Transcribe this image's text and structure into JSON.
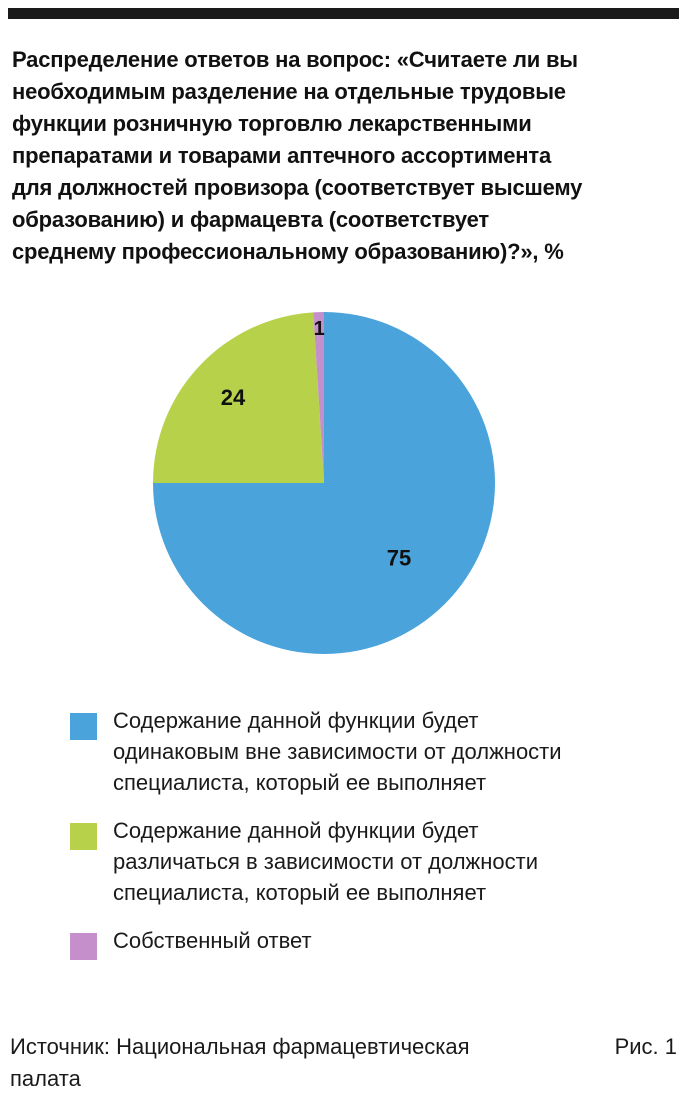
{
  "chart_data": {
    "type": "pie",
    "title_lines": [
      "Распределение ответов на вопрос: «Считаете ли вы",
      "необходимым разделение на отдельные трудовые",
      "функции розничную торговлю лекарственными",
      "препаратами и товарами аптечного ассортимента",
      "для должностей провизора (соответствует высшему",
      "образованию) и фармацевта (соответствует",
      "среднему профессиональному образованию)?», %"
    ],
    "start_angle_deg": 0,
    "direction": "clockwise",
    "slices": [
      {
        "value": 75,
        "label": "75",
        "color": "#4ba3dc",
        "legend_lines": [
          "Содержание данной функции будет",
          "одинаковым вне зависимости от должности",
          "специалиста, который ее выполняет"
        ]
      },
      {
        "value": 24,
        "label": "24",
        "color": "#b7d24a",
        "legend_lines": [
          "Содержание данной функции будет",
          "различаться в зависимости от должности",
          "специалиста, который ее выполняет"
        ]
      },
      {
        "value": 1,
        "label": "1",
        "color": "#c48fcb",
        "legend_lines": [
          "Собственный ответ"
        ]
      }
    ],
    "legend_position": "bottom"
  },
  "footer": {
    "source_lines": [
      "Источник: Национальная фармацевтическая",
      "палата"
    ],
    "figure_label": "Рис. 1"
  }
}
